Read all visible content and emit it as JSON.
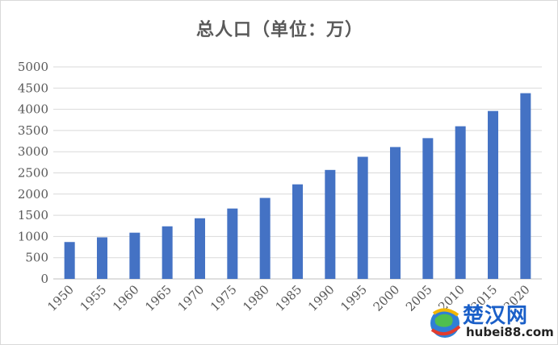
{
  "chart_data": {
    "type": "bar",
    "title": "总人口（单位：万）",
    "xlabel": "",
    "ylabel": "",
    "categories": [
      "1950",
      "1955",
      "1960",
      "1965",
      "1970",
      "1975",
      "1980",
      "1985",
      "1990",
      "1995",
      "2000",
      "2005",
      "2010",
      "2015",
      "2020"
    ],
    "values": [
      870,
      980,
      1090,
      1240,
      1430,
      1660,
      1910,
      2230,
      2570,
      2880,
      3110,
      3320,
      3600,
      3960,
      4380
    ],
    "ylim": [
      0,
      5000
    ],
    "yticks": [
      "0",
      "500",
      "1000",
      "1500",
      "2000",
      "2500",
      "3000",
      "3500",
      "4000",
      "4500",
      "5000"
    ],
    "grid": true,
    "legend": "none",
    "bar_color": "#4472c4"
  },
  "watermark": {
    "brand": "楚汉网",
    "domain": "hubei88.com",
    "brand_color": "#1a5fc8"
  }
}
